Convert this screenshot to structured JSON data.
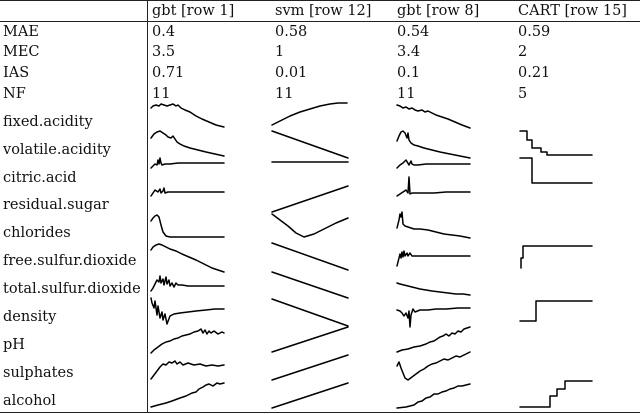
{
  "columns": [
    "gbt [row 1]",
    "svm [row 12]",
    "gbt [row 8]",
    "CART [row 15]"
  ],
  "metrics": [
    {
      "label": "MAE",
      "values": [
        "0.4",
        "0.58",
        "0.54",
        "0.59"
      ]
    },
    {
      "label": "MEC",
      "values": [
        "3.5",
        "1",
        "3.4",
        "2"
      ]
    },
    {
      "label": "IAS",
      "values": [
        "0.71",
        "0.01",
        "0.1",
        "0.21"
      ]
    },
    {
      "label": "NF",
      "values": [
        "11",
        "11",
        "11",
        "5"
      ]
    }
  ],
  "features": [
    "fixed.acidity",
    "volatile.acidity",
    "citric.acid",
    "residual.sugar",
    "chlorides",
    "free.sulfur.dioxide",
    "total.sulfur.dioxide",
    "density",
    "pH",
    "sulphates",
    "alcohol"
  ]
}
